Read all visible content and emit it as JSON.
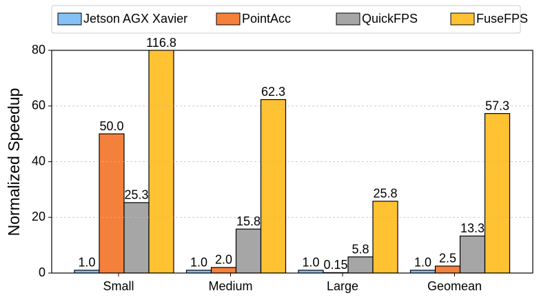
{
  "chart_data": {
    "type": "bar",
    "ylabel": "Normalized Speedup",
    "categories": [
      "Small",
      "Medium",
      "Large",
      "Geomean"
    ],
    "series": [
      {
        "name": "Jetson AGX Xavier",
        "color": "#85c1f5",
        "values": [
          1.0,
          1.0,
          1.0,
          1.0
        ],
        "value_labels": [
          "1.0",
          "1.0",
          "1.0",
          "1.0"
        ]
      },
      {
        "name": "PointAcc",
        "color": "#f4813b",
        "values": [
          50.0,
          2.0,
          0.15,
          2.5
        ],
        "value_labels": [
          "50.0",
          "2.0",
          "0.15",
          "2.5"
        ]
      },
      {
        "name": "QuickFPS",
        "color": "#a6a6a6",
        "values": [
          25.3,
          15.8,
          5.8,
          13.3
        ],
        "value_labels": [
          "25.3",
          "15.8",
          "5.8",
          "13.3"
        ]
      },
      {
        "name": "FuseFPS",
        "color": "#fec232",
        "values": [
          116.8,
          62.3,
          25.8,
          57.3
        ],
        "value_labels": [
          "116.8",
          "62.3",
          "25.8",
          "57.3"
        ]
      }
    ],
    "ylim": [
      0,
      80
    ],
    "yticks": [
      0,
      20,
      40,
      60,
      80
    ],
    "grid": true
  }
}
